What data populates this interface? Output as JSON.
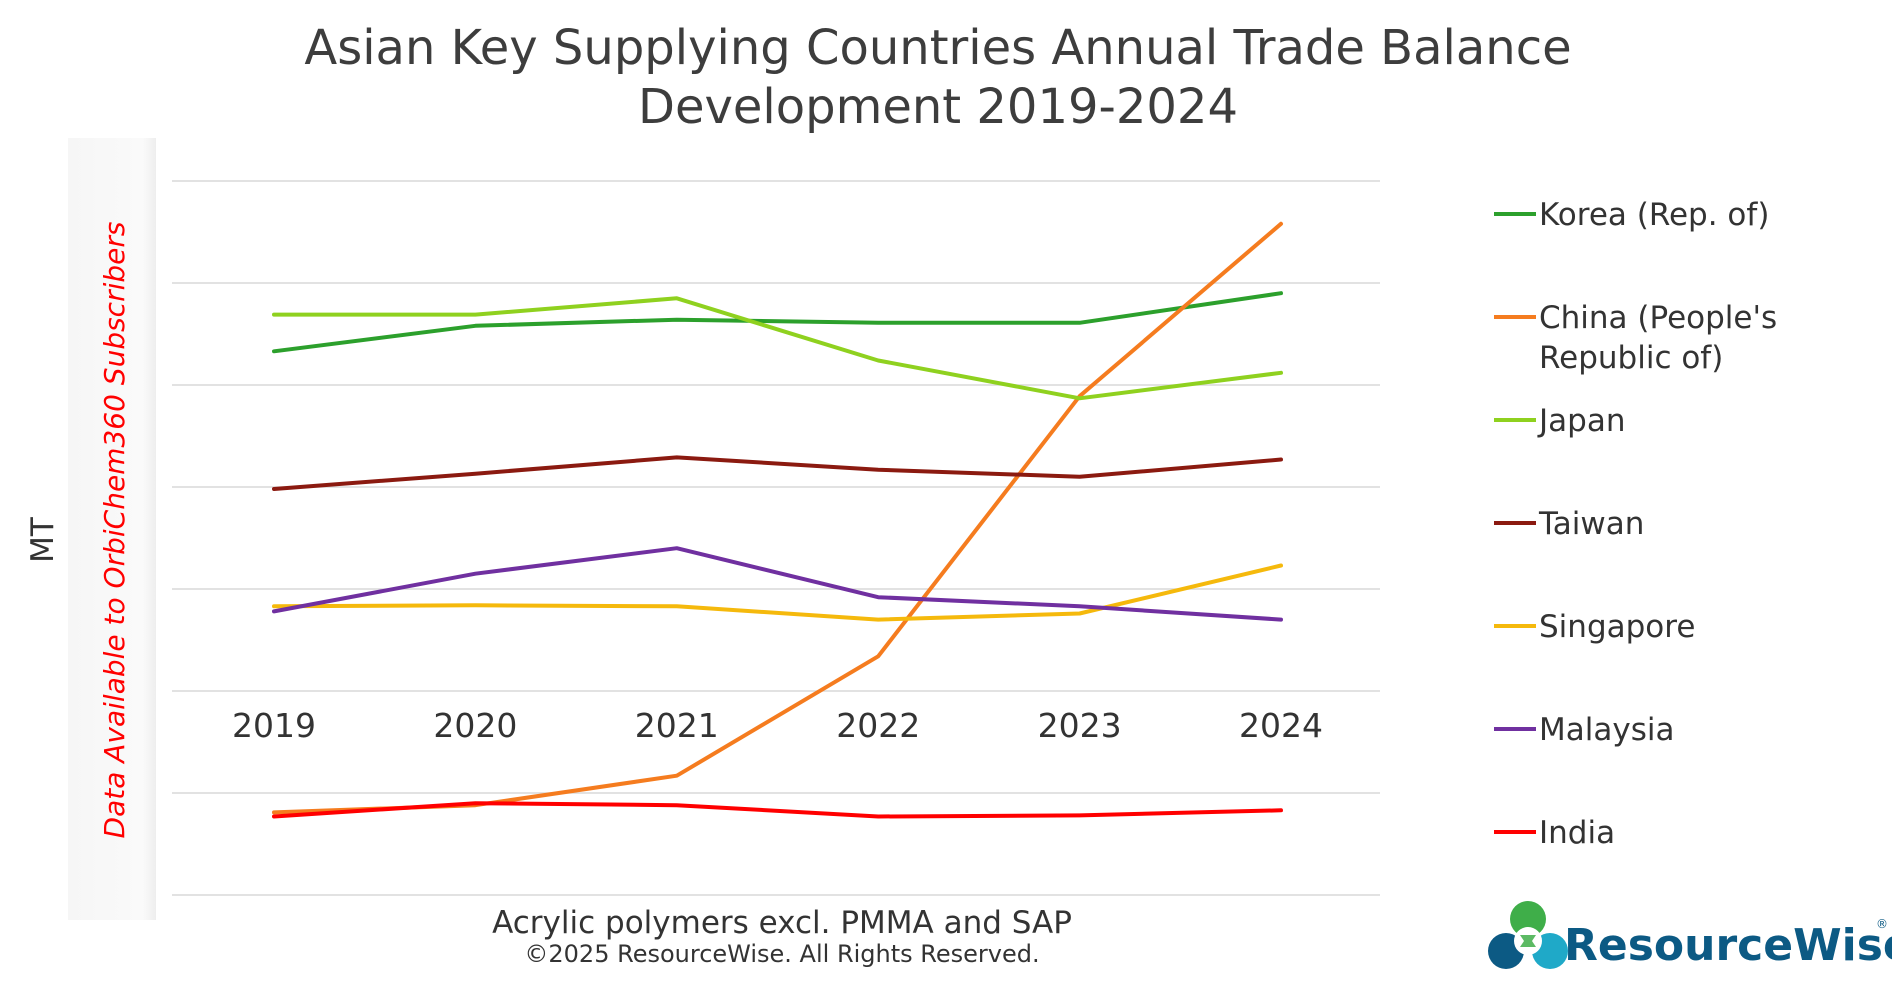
{
  "chart_data": {
    "type": "line",
    "title_lines": [
      "Asian Key Supplying Countries Annual Trade Balance",
      "Development 2019-2024"
    ],
    "ylabel": "MT",
    "xlabel": "Acrylic polymers excl. PMMA and SAP",
    "copyright": "©2025 ResourceWise. All Rights Reserved.",
    "notice": "Data Available to OrbiChem360 Subscribers",
    "categories": [
      "2019",
      "2020",
      "2021",
      "2022",
      "2023",
      "2024"
    ],
    "ylim": [
      -2,
      5
    ],
    "grid": true,
    "y_ticks_visible": false,
    "legend_position": "right",
    "series": [
      {
        "name": "Korea (Rep. of)",
        "legend_lines": [
          "Korea (Rep. of)"
        ],
        "color": "#2ca02c",
        "values": [
          3.33,
          3.58,
          3.64,
          3.61,
          3.61,
          3.9
        ]
      },
      {
        "name": "China (People's Republic of)",
        "legend_lines": [
          "China (People's",
          "Republic of)"
        ],
        "color": "#f57c1f",
        "values": [
          -1.19,
          -1.12,
          -0.83,
          0.34,
          2.89,
          4.58
        ]
      },
      {
        "name": "Japan",
        "legend_lines": [
          "Japan"
        ],
        "color": "#8fd11f",
        "values": [
          3.69,
          3.69,
          3.85,
          3.24,
          2.87,
          3.12
        ]
      },
      {
        "name": "Taiwan",
        "legend_lines": [
          "Taiwan"
        ],
        "color": "#8b1a10",
        "values": [
          1.98,
          2.13,
          2.29,
          2.17,
          2.1,
          2.27
        ]
      },
      {
        "name": "Singapore",
        "legend_lines": [
          "Singapore"
        ],
        "color": "#f5b90c",
        "values": [
          0.83,
          0.84,
          0.83,
          0.7,
          0.76,
          1.23
        ]
      },
      {
        "name": "Malaysia",
        "legend_lines": [
          "Malaysia"
        ],
        "color": "#7030a0",
        "values": [
          0.78,
          1.15,
          1.4,
          0.92,
          0.83,
          0.7
        ]
      },
      {
        "name": "India",
        "legend_lines": [
          "India"
        ],
        "color": "#ff0000",
        "values": [
          -1.23,
          -1.1,
          -1.12,
          -1.23,
          -1.22,
          -1.17
        ]
      }
    ]
  },
  "logo": {
    "text": "ResourceWise",
    "registered": "®",
    "colors": [
      "#3fae49",
      "#0c5a84",
      "#1fa9c8"
    ]
  }
}
